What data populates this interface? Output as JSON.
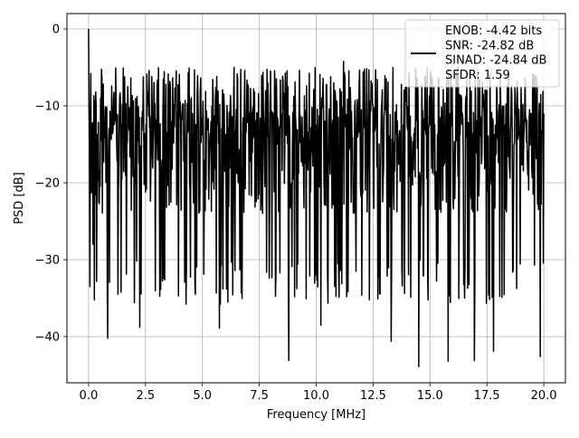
{
  "chart_data": {
    "type": "line",
    "title": "",
    "xlabel": "Frequency [MHz]",
    "ylabel": "PSD [dB]",
    "xlim": [
      -0.95,
      20.95
    ],
    "ylim": [
      -46,
      2
    ],
    "x_ticks": [
      0,
      2.5,
      5,
      7.5,
      10,
      12.5,
      15,
      17.5,
      20
    ],
    "x_tick_labels": [
      "0.0",
      "2.5",
      "5.0",
      "7.5",
      "10.0",
      "12.5",
      "15.0",
      "17.5",
      "20.0"
    ],
    "y_ticks": [
      0,
      -10,
      -20,
      -30,
      -40
    ],
    "y_tick_labels": [
      "0",
      "−10",
      "−20",
      "−30",
      "−40"
    ],
    "grid": true,
    "legend_position": "top-right",
    "legend_lines": [
      "ENOB: -4.42 bits",
      "SNR: -24.82 dB",
      "SINAD: -24.84 dB",
      "SFDR: 1.59"
    ],
    "series": [
      {
        "color": "#000000",
        "x_start": 0,
        "x_end": 20,
        "points": 1024,
        "noise_floor_db": -17,
        "envelope_top_db": -5,
        "envelope_bottom_db": -30,
        "values_sample": [
          [
            0.0,
            0.0
          ],
          [
            0.05,
            -33.5
          ],
          [
            0.1,
            -5.8
          ],
          [
            0.2,
            -28.0
          ],
          [
            0.85,
            -40.2
          ],
          [
            1.3,
            -34.5
          ],
          [
            2.25,
            -38.8
          ],
          [
            2.8,
            -10.0
          ],
          [
            4.7,
            -34.5
          ],
          [
            5.75,
            -38.9
          ],
          [
            6.4,
            -5.0
          ],
          [
            8.8,
            -43.1
          ],
          [
            10.2,
            -38.5
          ],
          [
            11.2,
            -4.2
          ],
          [
            13.3,
            -40.6
          ],
          [
            14.5,
            -43.9
          ],
          [
            15.8,
            -43.2
          ],
          [
            16.95,
            -43.1
          ],
          [
            17.8,
            -41.9
          ],
          [
            19.85,
            -42.6
          ],
          [
            20.0,
            -11.0
          ]
        ]
      }
    ]
  }
}
